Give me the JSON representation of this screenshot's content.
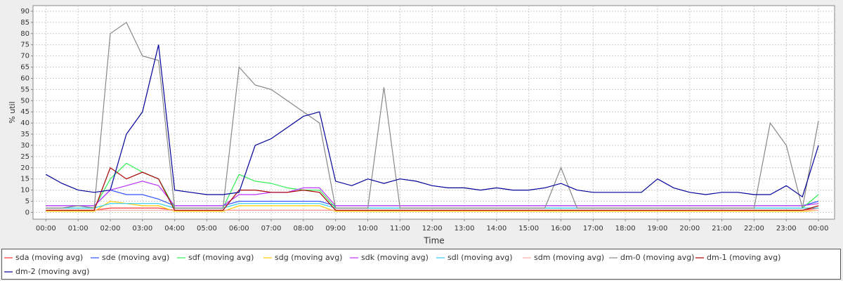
{
  "chart_data": {
    "type": "line",
    "x_label": "Time",
    "y_label": "% util",
    "x": [
      0,
      0.5,
      1,
      1.5,
      2,
      2.5,
      3,
      3.5,
      4,
      4.5,
      5,
      5.5,
      6,
      6.5,
      7,
      7.5,
      8,
      8.5,
      9,
      9.5,
      10,
      10.5,
      11,
      11.5,
      12,
      12.5,
      13,
      13.5,
      14,
      14.5,
      15,
      15.5,
      16,
      16.5,
      17,
      17.5,
      18,
      18.5,
      19,
      19.5,
      20,
      20.5,
      21,
      21.5,
      22,
      22.5,
      23,
      23.5,
      24
    ],
    "xlim": [
      -0.4,
      24.5
    ],
    "xticks": [
      {
        "value": 0,
        "label": "00:00"
      },
      {
        "value": 1,
        "label": "01:00"
      },
      {
        "value": 2,
        "label": "02:00"
      },
      {
        "value": 3,
        "label": "03:00"
      },
      {
        "value": 4,
        "label": "04:00"
      },
      {
        "value": 5,
        "label": "05:00"
      },
      {
        "value": 6,
        "label": "06:00"
      },
      {
        "value": 7,
        "label": "07:00"
      },
      {
        "value": 8,
        "label": "08:00"
      },
      {
        "value": 9,
        "label": "09:00"
      },
      {
        "value": 10,
        "label": "10:00"
      },
      {
        "value": 11,
        "label": "11:00"
      },
      {
        "value": 12,
        "label": "12:00"
      },
      {
        "value": 13,
        "label": "13:00"
      },
      {
        "value": 14,
        "label": "14:00"
      },
      {
        "value": 15,
        "label": "15:00"
      },
      {
        "value": 16,
        "label": "16:00"
      },
      {
        "value": 17,
        "label": "17:00"
      },
      {
        "value": 18,
        "label": "18:00"
      },
      {
        "value": 19,
        "label": "19:00"
      },
      {
        "value": 20,
        "label": "20:00"
      },
      {
        "value": 21,
        "label": "21:00"
      },
      {
        "value": 22,
        "label": "22:00"
      },
      {
        "value": 23,
        "label": "23:00"
      },
      {
        "value": 24,
        "label": "00:00"
      }
    ],
    "ylim": [
      -3,
      92.5
    ],
    "yticks": [
      0,
      5,
      10,
      15,
      20,
      25,
      30,
      35,
      40,
      45,
      50,
      55,
      60,
      65,
      70,
      75,
      80,
      85,
      90
    ],
    "grid": true,
    "series": [
      {
        "name": "sda (moving avg)",
        "color": "#ff3333",
        "values": [
          1,
          1,
          1,
          1,
          2,
          2,
          2,
          2,
          1,
          1,
          1,
          1,
          1,
          1,
          1,
          1,
          1,
          1,
          1,
          1,
          1,
          1,
          1,
          1,
          1,
          1,
          1,
          1,
          1,
          1,
          1,
          1,
          1,
          1,
          1,
          1,
          1,
          1,
          1,
          1,
          1,
          1,
          1,
          1,
          1,
          1,
          1,
          1,
          2
        ]
      },
      {
        "name": "sde (moving avg)",
        "color": "#3355ff",
        "values": [
          3,
          3,
          3,
          3,
          10,
          8,
          8,
          6,
          3,
          3,
          3,
          3,
          5,
          5,
          5,
          5,
          5,
          5,
          3,
          3,
          3,
          3,
          3,
          3,
          3,
          3,
          3,
          3,
          3,
          3,
          3,
          3,
          3,
          3,
          3,
          3,
          3,
          3,
          3,
          3,
          3,
          3,
          3,
          3,
          3,
          3,
          3,
          3,
          5
        ]
      },
      {
        "name": "sdf (moving avg)",
        "color": "#33ee55",
        "values": [
          2,
          2,
          2,
          2,
          15,
          22,
          18,
          15,
          2,
          2,
          2,
          2,
          17,
          14,
          13,
          11,
          10,
          10,
          2,
          2,
          2,
          2,
          2,
          2,
          2,
          2,
          2,
          2,
          2,
          2,
          2,
          2,
          2,
          2,
          2,
          2,
          2,
          2,
          2,
          2,
          2,
          2,
          2,
          2,
          2,
          2,
          2,
          2,
          8
        ]
      },
      {
        "name": "sdg (moving avg)",
        "color": "#ffcc00",
        "values": [
          0.5,
          0.5,
          0.5,
          0.5,
          5,
          4,
          3,
          3,
          0.5,
          0.5,
          0.5,
          0.5,
          3,
          3,
          3,
          3,
          3,
          3,
          0.5,
          0.5,
          0.5,
          0.5,
          0.5,
          0.5,
          0.5,
          0.5,
          0.5,
          0.5,
          0.5,
          0.5,
          0.5,
          0.5,
          0.5,
          0.5,
          0.5,
          0.5,
          0.5,
          0.5,
          0.5,
          0.5,
          0.5,
          0.5,
          0.5,
          0.5,
          0.5,
          0.5,
          0.5,
          0.5,
          1
        ]
      },
      {
        "name": "sdk (moving avg)",
        "color": "#bb33ff",
        "values": [
          3,
          3,
          3,
          3,
          10,
          12,
          14,
          12,
          3,
          3,
          3,
          3,
          8,
          8,
          9,
          9,
          11,
          11,
          3,
          3,
          3,
          3,
          3,
          3,
          3,
          3,
          3,
          3,
          3,
          3,
          3,
          3,
          3,
          3,
          3,
          3,
          3,
          3,
          3,
          3,
          3,
          3,
          3,
          3,
          3,
          3,
          3,
          3,
          4
        ]
      },
      {
        "name": "sdl (moving avg)",
        "color": "#33ccee",
        "values": [
          2,
          2,
          2,
          2,
          4,
          4,
          4,
          4,
          2,
          2,
          2,
          2,
          4,
          4,
          4,
          4,
          4,
          4,
          2,
          2,
          2,
          2,
          2,
          2,
          2,
          2,
          2,
          2,
          2,
          2,
          2,
          2,
          2,
          2,
          2,
          2,
          2,
          2,
          2,
          2,
          2,
          2,
          2,
          2,
          2,
          2,
          2,
          2,
          2
        ]
      },
      {
        "name": "sdm (moving avg)",
        "color": "#ffaaaa",
        "values": [
          1,
          1,
          1,
          1,
          1,
          1,
          1,
          1,
          1,
          1,
          1,
          1,
          1,
          1,
          1,
          1,
          1,
          1,
          1,
          1,
          1,
          1,
          1,
          1,
          1,
          1,
          1,
          1,
          1,
          1,
          1,
          1,
          1,
          1,
          1,
          1,
          1,
          1,
          1,
          1,
          1,
          1,
          1,
          1,
          1,
          1,
          1,
          1,
          1
        ]
      },
      {
        "name": "dm-0 (moving avg)",
        "color": "#888888",
        "values": [
          2,
          2,
          3,
          2,
          80,
          85,
          70,
          68,
          2,
          2,
          2,
          2,
          65,
          57,
          55,
          50,
          45,
          40,
          2,
          2,
          2,
          56,
          2,
          2,
          2,
          2,
          2,
          2,
          2,
          2,
          2,
          2,
          20,
          2,
          2,
          2,
          2,
          2,
          2,
          2,
          2,
          2,
          2,
          2,
          2,
          40,
          30,
          2,
          41
        ]
      },
      {
        "name": "dm-1 (moving avg)",
        "color": "#aa0000",
        "values": [
          1,
          1,
          1,
          1,
          20,
          15,
          18,
          15,
          1,
          1,
          1,
          1,
          10,
          10,
          9,
          9,
          10,
          9,
          1,
          1,
          1,
          1,
          1,
          1,
          1,
          1,
          1,
          1,
          1,
          1,
          1,
          1,
          1,
          1,
          1,
          1,
          1,
          1,
          1,
          1,
          1,
          1,
          1,
          1,
          1,
          1,
          1,
          1,
          3
        ]
      },
      {
        "name": "dm-2 (moving avg)",
        "color": "#000099",
        "values": [
          17,
          13,
          10,
          9,
          10,
          35,
          45,
          75,
          10,
          9,
          8,
          8,
          9,
          30,
          33,
          38,
          43,
          45,
          14,
          12,
          15,
          13,
          15,
          14,
          12,
          11,
          11,
          10,
          11,
          10,
          10,
          11,
          13,
          10,
          9,
          9,
          9,
          9,
          15,
          11,
          9,
          8,
          9,
          9,
          8,
          8,
          12,
          7,
          30
        ]
      }
    ]
  }
}
